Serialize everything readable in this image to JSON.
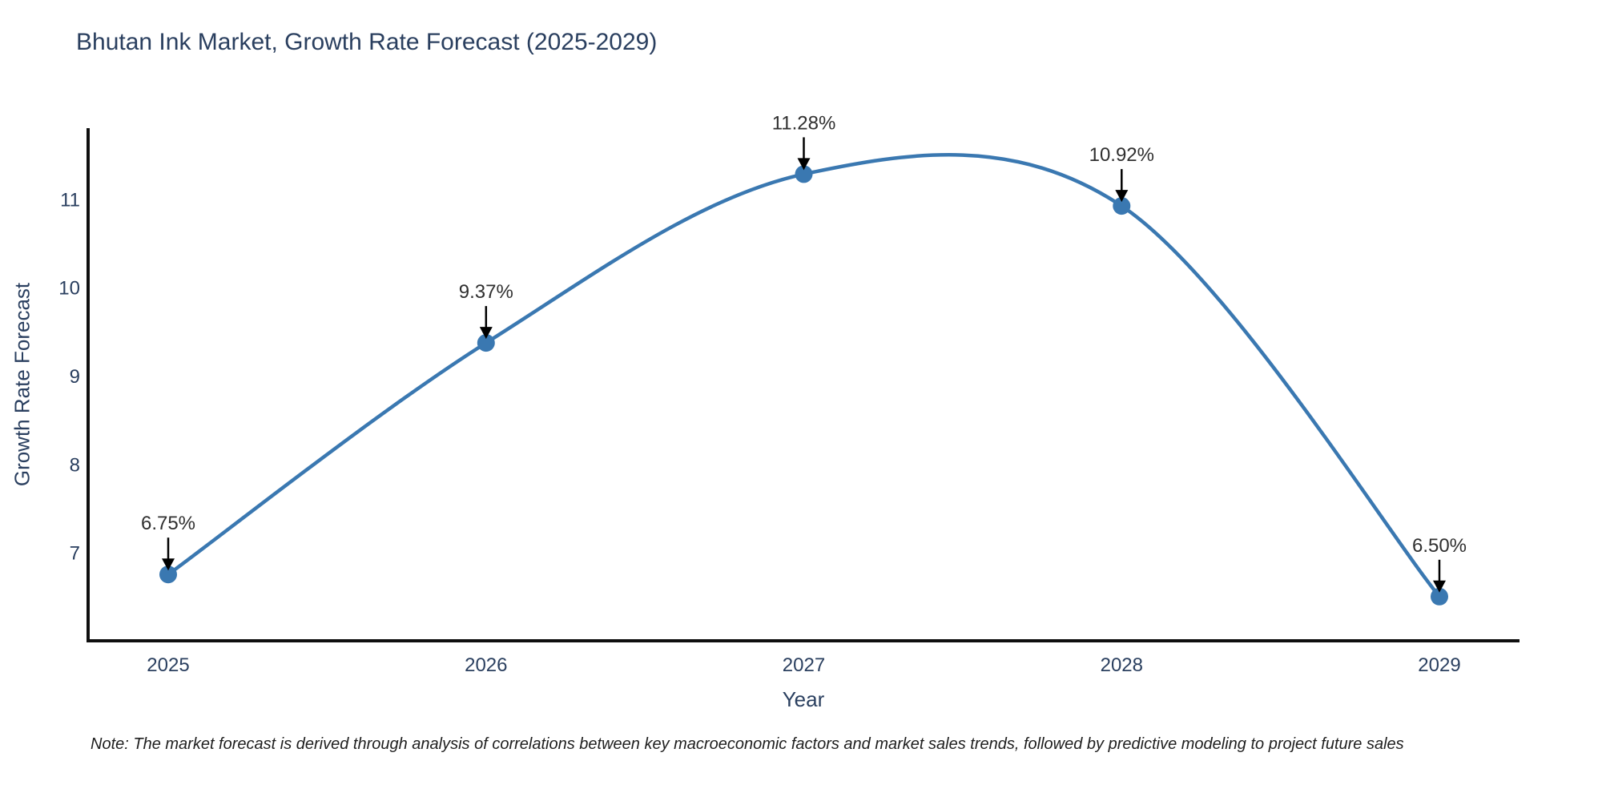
{
  "header": {
    "title": "Bhutan Ink Market, Growth Rate Forecast (2025-2029)"
  },
  "chart_data": {
    "type": "line",
    "line_shape": "spline",
    "title": "Bhutan Ink Market, Growth Rate Forecast (2025-2029)",
    "x": [
      2025,
      2026,
      2027,
      2028,
      2029
    ],
    "xticks": [
      "2025",
      "2026",
      "2027",
      "2028",
      "2029"
    ],
    "series": [
      {
        "name": "Growth Rate Forecast",
        "values": [
          6.75,
          9.37,
          11.28,
          10.92,
          6.5
        ]
      }
    ],
    "point_labels": [
      "6.75%",
      "9.37%",
      "11.28%",
      "10.92%",
      "6.50%"
    ],
    "xlabel": "Year",
    "ylabel": "Growth Rate Forecast",
    "yticks": [
      7,
      8,
      9,
      10,
      11
    ],
    "ylim": [
      6.0,
      11.8
    ],
    "grid": false,
    "legend": "none",
    "annotations": "arrow-down-to-each-point",
    "colors": {
      "line": "#3a78b1",
      "marker": "#3a78b1",
      "axis": "#0f0f0f",
      "tick_text": "#2a3f5f",
      "annotation_text": "#2f2f2f",
      "annotation_arrow": "#000000",
      "background": "#ffffff"
    }
  },
  "footnote": {
    "text": "Note: The market forecast is derived through analysis of correlations between key macroeconomic factors and market sales trends, followed by predictive modeling to project future sales"
  }
}
